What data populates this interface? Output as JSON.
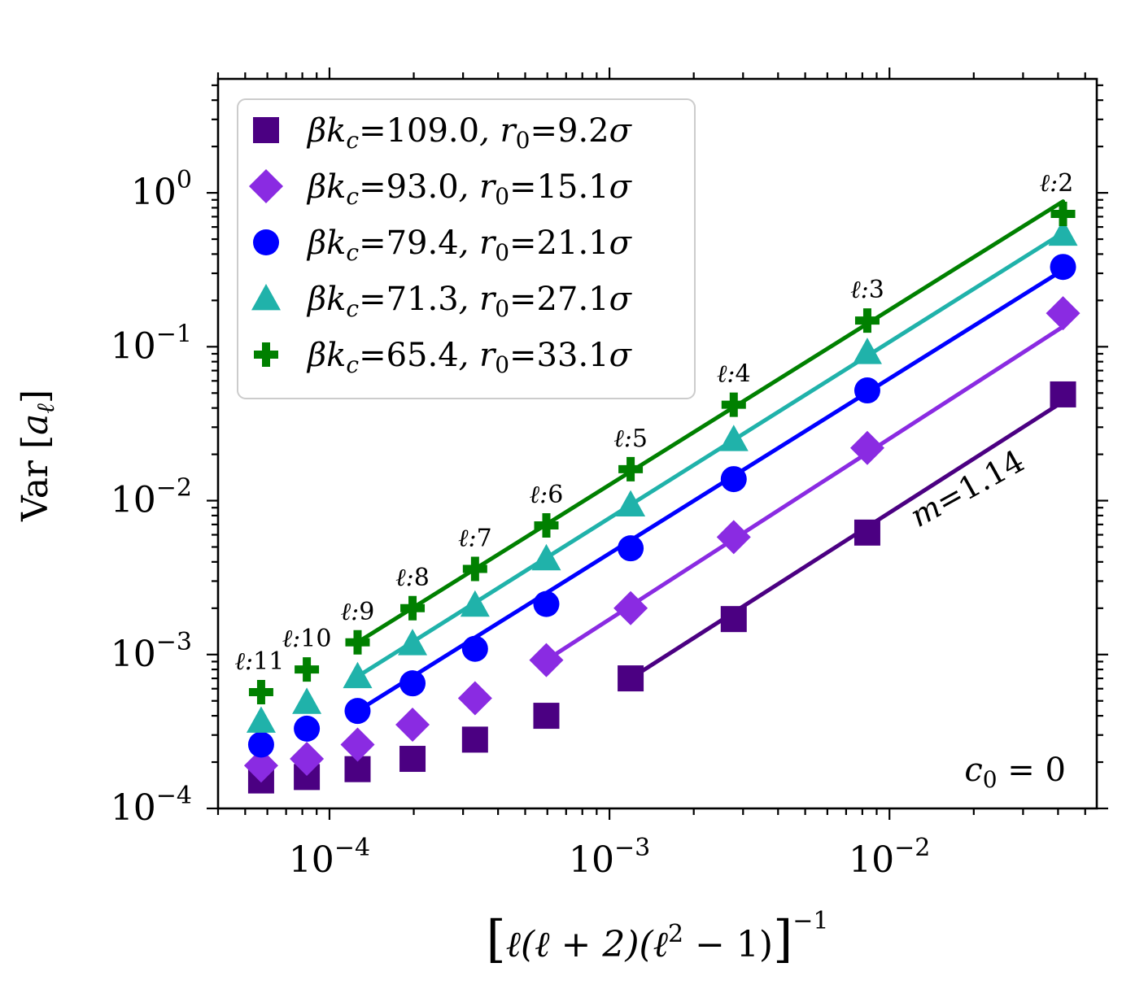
{
  "chart_data": {
    "type": "scatter",
    "x_scale": "log",
    "y_scale": "log",
    "xlim": [
      4e-05,
      0.055
    ],
    "ylim": [
      0.0001,
      5.5
    ],
    "xlabel": {
      "bracket_left": "[",
      "bracket_right": "]",
      "expr": "ℓ(ℓ + 2)(ℓ",
      "sq": "2",
      "rest": " − 1)",
      "sup": "−1"
    },
    "ylabel": {
      "main": "Var ",
      "bracket_left": "[",
      "var": "a",
      "sub": "ℓ",
      "bracket_right": "]"
    },
    "x_ticks": [
      {
        "base": "10",
        "exp": "−4",
        "value": 0.0001
      },
      {
        "base": "10",
        "exp": "−3",
        "value": 0.001
      },
      {
        "base": "10",
        "exp": "−2",
        "value": 0.01
      }
    ],
    "y_ticks": [
      {
        "base": "10",
        "exp": "−4",
        "value": 0.0001
      },
      {
        "base": "10",
        "exp": "−3",
        "value": 0.001
      },
      {
        "base": "10",
        "exp": "−2",
        "value": 0.01
      },
      {
        "base": "10",
        "exp": "−1",
        "value": 0.1
      },
      {
        "base": "10",
        "exp": "0",
        "value": 1
      }
    ],
    "x": [
      0.04167,
      0.008333,
      0.002778,
      0.00119,
      0.000595,
      0.000331,
      0.000198,
      0.000126,
      8.3e-05,
      5.7e-05
    ],
    "ell": [
      "2",
      "3",
      "4",
      "5",
      "6",
      "7",
      "8",
      "9",
      "10",
      "11"
    ],
    "ell_prefix": "ℓ:",
    "series": [
      {
        "name": "βk_c=109.0, r_0=9.2σ",
        "label": {
          "kc": "109.0",
          "r0": "9.2"
        },
        "color": "#4b0082",
        "marker": "square",
        "values": [
          0.049,
          0.0062,
          0.0017,
          0.0007,
          0.0004,
          0.00028,
          0.00021,
          0.00018,
          0.00016,
          0.000152
        ],
        "fit": {
          "x_range": [
            0.00119,
            0.04167
          ],
          "y_range": [
            0.0007,
            0.044
          ]
        }
      },
      {
        "name": "βk_c=93.0, r_0=15.1σ",
        "label": {
          "kc": "93.0",
          "r0": "15.1"
        },
        "color": "#8a2be2",
        "marker": "diamond",
        "values": [
          0.165,
          0.022,
          0.0058,
          0.002,
          0.00092,
          0.00052,
          0.00035,
          0.00026,
          0.00021,
          0.00019
        ],
        "fit": {
          "x_range": [
            0.000595,
            0.04167
          ],
          "y_range": [
            0.00092,
            0.135
          ]
        }
      },
      {
        "name": "βk_c=79.4, r_0=21.1σ",
        "label": {
          "kc": "79.4",
          "r0": "21.1"
        },
        "color": "#0000ff",
        "marker": "circle",
        "values": [
          0.33,
          0.052,
          0.0138,
          0.0049,
          0.00213,
          0.00109,
          0.00065,
          0.00043,
          0.00033,
          0.00026
        ],
        "fit": {
          "x_range": [
            0.000126,
            0.04167
          ],
          "y_range": [
            0.00043,
            0.315
          ]
        }
      },
      {
        "name": "βk_c=71.3, r_0=27.1σ",
        "label": {
          "kc": "71.3",
          "r0": "27.1"
        },
        "color": "#20b2aa",
        "marker": "triangle",
        "values": [
          0.54,
          0.092,
          0.025,
          0.0094,
          0.0042,
          0.0021,
          0.00118,
          0.00072,
          0.00049,
          0.00037
        ],
        "fit": {
          "x_range": [
            0.000126,
            0.04167
          ],
          "y_range": [
            0.00072,
            0.55
          ]
        }
      },
      {
        "name": "βk_c=65.4, r_0=33.1σ",
        "label": {
          "kc": "65.4",
          "r0": "33.1"
        },
        "color": "#008000",
        "marker": "plus",
        "values": [
          0.73,
          0.148,
          0.042,
          0.016,
          0.0069,
          0.0036,
          0.002,
          0.0012,
          0.0008,
          0.00057
        ],
        "fit": {
          "x_range": [
            0.000126,
            0.04167
          ],
          "y_range": [
            0.0012,
            0.88
          ]
        }
      }
    ],
    "annotations": {
      "slope": {
        "var": "m",
        "text": "=1.14"
      },
      "c0": {
        "var": "c",
        "sub": "0",
        "text": " = 0"
      }
    },
    "legend": {
      "location": "upper-left",
      "prefix": "βk",
      "prefix_sub": "c",
      "mid": ", r",
      "mid_sub": "0",
      "unit": "σ"
    },
    "grid": false
  }
}
